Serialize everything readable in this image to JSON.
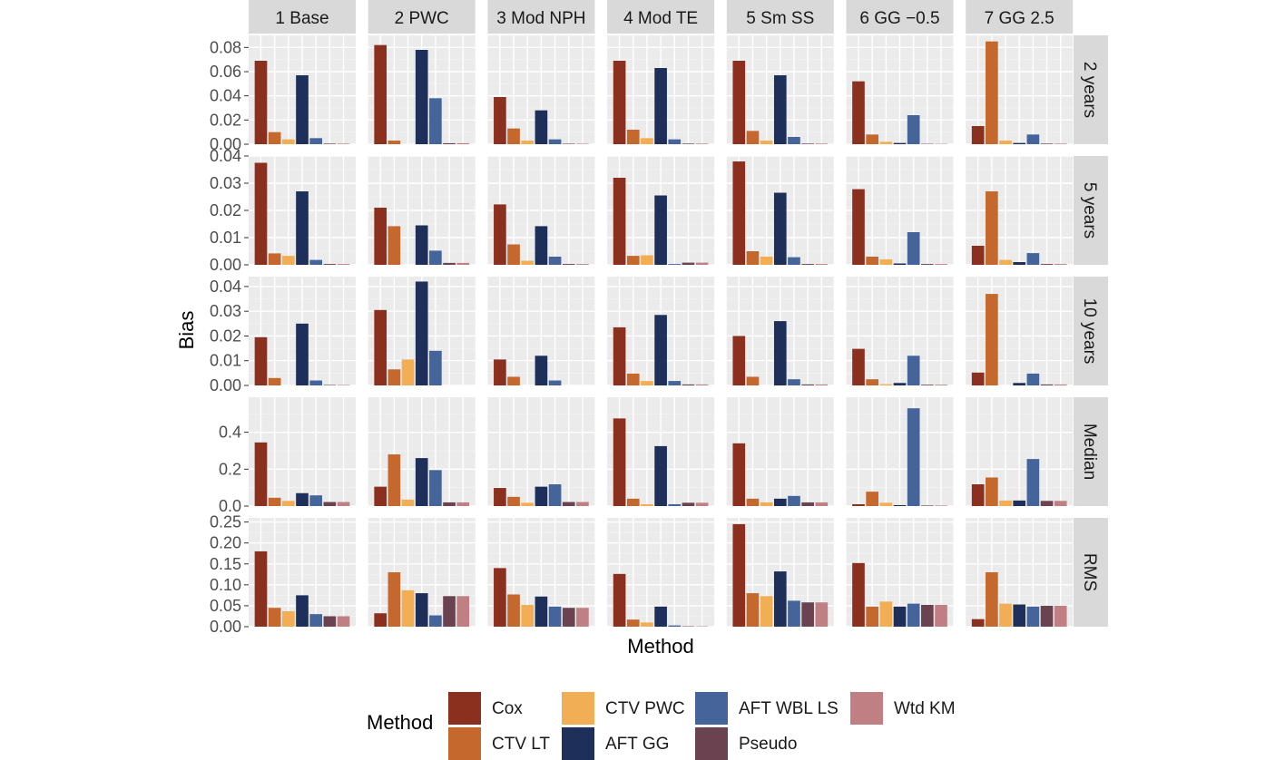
{
  "chart_data": {
    "type": "bar",
    "facet_layout": "grid",
    "ylabel": "Bias",
    "xlabel": "Method",
    "legend": {
      "title": "Method",
      "placement": "bottom"
    },
    "methods": [
      "Cox",
      "CTV LT",
      "CTV PWC",
      "AFT GG",
      "AFT WBL LS",
      "Pseudo",
      "Wtd KM"
    ],
    "colors": [
      "#8B2F1F",
      "#C4682E",
      "#F2AE55",
      "#1E2F5A",
      "#44649A",
      "#6B4350",
      "#BF7F83"
    ],
    "scenarios": [
      "1 Base",
      "2 PWC",
      "3 Mod NPH",
      "4 Mod TE",
      "5 Sm SS",
      "6 GG −0.5",
      "7 GG 2.5"
    ],
    "rows": [
      {
        "label": "2 years",
        "ylim": [
          0,
          0.09
        ],
        "ticks": [
          0.0,
          0.02,
          0.04,
          0.06,
          0.08
        ],
        "tick_labels": [
          "0.00",
          "0.02",
          "0.04",
          "0.06",
          "0.08"
        ],
        "values": [
          [
            0.069,
            0.01,
            0.004,
            0.057,
            0.005,
            0.0005,
            0.0005
          ],
          [
            0.082,
            0.003,
            0.0,
            0.078,
            0.038,
            0.0008,
            0.0008
          ],
          [
            0.039,
            0.013,
            0.003,
            0.028,
            0.004,
            0.0004,
            0.0004
          ],
          [
            0.069,
            0.012,
            0.005,
            0.063,
            0.004,
            0.0005,
            0.0005
          ],
          [
            0.069,
            0.011,
            0.003,
            0.057,
            0.006,
            0.0005,
            0.0005
          ],
          [
            0.052,
            0.008,
            0.002,
            0.001,
            0.024,
            0.0003,
            0.0003
          ],
          [
            0.015,
            0.085,
            0.003,
            0.001,
            0.008,
            0.0005,
            0.0005
          ]
        ]
      },
      {
        "label": "5 years",
        "ylim": [
          0,
          0.04
        ],
        "ticks": [
          0.0,
          0.01,
          0.02,
          0.03,
          0.04
        ],
        "tick_labels": [
          "0.00",
          "0.01",
          "0.02",
          "0.03",
          "0.04"
        ],
        "values": [
          [
            0.0375,
            0.0042,
            0.0033,
            0.027,
            0.0018,
            0.0003,
            0.0003
          ],
          [
            0.021,
            0.0142,
            0.0,
            0.0145,
            0.0052,
            0.0007,
            0.0007
          ],
          [
            0.0222,
            0.0075,
            0.0015,
            0.0142,
            0.003,
            0.0003,
            0.0003
          ],
          [
            0.032,
            0.0033,
            0.0035,
            0.0255,
            0.0003,
            0.0008,
            0.0008
          ],
          [
            0.038,
            0.005,
            0.003,
            0.0265,
            0.0028,
            0.0003,
            0.0003
          ],
          [
            0.0278,
            0.003,
            0.002,
            0.0005,
            0.012,
            0.0003,
            0.0003
          ],
          [
            0.007,
            0.027,
            0.0018,
            0.001,
            0.0043,
            0.0003,
            0.0003
          ]
        ]
      },
      {
        "label": "10 years",
        "ylim": [
          0,
          0.044
        ],
        "ticks": [
          0.0,
          0.01,
          0.02,
          0.03,
          0.04
        ],
        "tick_labels": [
          "0.00",
          "0.01",
          "0.02",
          "0.03",
          "0.04"
        ],
        "values": [
          [
            0.0195,
            0.003,
            0.0,
            0.025,
            0.002,
            0.0002,
            0.0002
          ],
          [
            0.0305,
            0.0065,
            0.0105,
            0.042,
            0.014,
            0.0,
            0.0
          ],
          [
            0.0105,
            0.0035,
            0.0,
            0.012,
            0.002,
            0.0,
            0.0
          ],
          [
            0.0235,
            0.0048,
            0.0018,
            0.0285,
            0.0018,
            0.0004,
            0.0004
          ],
          [
            0.02,
            0.0035,
            0.0,
            0.026,
            0.0025,
            0.0004,
            0.0004
          ],
          [
            0.0148,
            0.0025,
            0.0005,
            0.001,
            0.012,
            0.0003,
            0.0003
          ],
          [
            0.0052,
            0.037,
            0.0,
            0.001,
            0.0048,
            0.0004,
            0.0004
          ]
        ]
      },
      {
        "label": "Median",
        "ylim": [
          0,
          0.59
        ],
        "ticks": [
          0.0,
          0.2,
          0.4
        ],
        "tick_labels": [
          "0.0",
          "0.2",
          "0.4"
        ],
        "values": [
          [
            0.345,
            0.045,
            0.028,
            0.07,
            0.058,
            0.022,
            0.022
          ],
          [
            0.105,
            0.28,
            0.035,
            0.26,
            0.195,
            0.02,
            0.02
          ],
          [
            0.098,
            0.05,
            0.018,
            0.105,
            0.118,
            0.022,
            0.022
          ],
          [
            0.475,
            0.04,
            0.01,
            0.325,
            0.01,
            0.018,
            0.018
          ],
          [
            0.34,
            0.04,
            0.02,
            0.04,
            0.055,
            0.02,
            0.02
          ],
          [
            0.01,
            0.078,
            0.018,
            0.005,
            0.53,
            0.003,
            0.003
          ],
          [
            0.118,
            0.155,
            0.03,
            0.03,
            0.255,
            0.028,
            0.028
          ]
        ]
      },
      {
        "label": "RMS",
        "ylim": [
          0,
          0.26
        ],
        "ticks": [
          0.0,
          0.05,
          0.1,
          0.15,
          0.2,
          0.25
        ],
        "tick_labels": [
          "0.00",
          "0.05",
          "0.10",
          "0.15",
          "0.20",
          "0.25"
        ],
        "values": [
          [
            0.18,
            0.045,
            0.037,
            0.075,
            0.03,
            0.025,
            0.025
          ],
          [
            0.032,
            0.13,
            0.087,
            0.08,
            0.027,
            0.073,
            0.073
          ],
          [
            0.14,
            0.077,
            0.052,
            0.072,
            0.048,
            0.045,
            0.045
          ],
          [
            0.126,
            0.017,
            0.01,
            0.048,
            0.003,
            0.001,
            0.001
          ],
          [
            0.245,
            0.08,
            0.073,
            0.132,
            0.062,
            0.058,
            0.058
          ],
          [
            0.152,
            0.048,
            0.06,
            0.048,
            0.055,
            0.052,
            0.052
          ],
          [
            0.018,
            0.13,
            0.055,
            0.053,
            0.048,
            0.05,
            0.05
          ]
        ]
      }
    ]
  }
}
